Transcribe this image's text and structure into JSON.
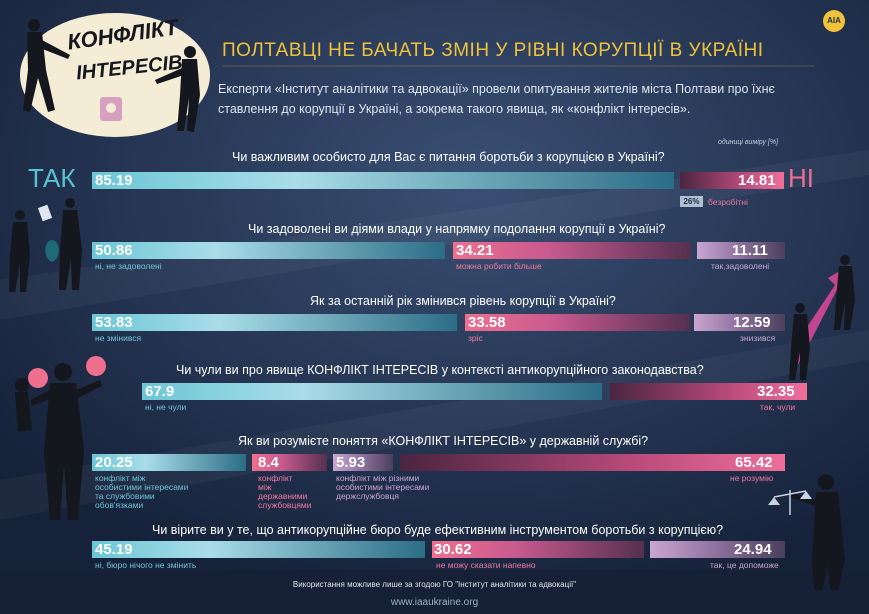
{
  "header": {
    "logo_line1": "КОНФЛІКТ",
    "logo_line2": "ІНТЕРЕСІВ",
    "badge": "АІА",
    "title": "ПОЛТАВЦІ НЕ БАЧАТЬ ЗМІН У РІВНІ КОРУПЦІЇ В УКРАЇНІ",
    "intro": "Експерти «Інститут аналітики та адвокації» провели опитування жителів міста Полтави про їхнє ставлення до корупції в Україні, а зокрема такого явища, як «конфлікт інтересів».",
    "units": "одиниці виміру [%]"
  },
  "colors": {
    "background": "#1d2b44",
    "title": "#f0c23a",
    "blue": "#58c2d6",
    "pink": "#ee6f93",
    "lavender": "#c9a6cf"
  },
  "q1": {
    "question": "Чи важливим особисто для Вас є питання боротьби з корупцією в Україні?",
    "tak": "ТАК",
    "ni": "НІ",
    "yes_value": "85.19",
    "no_value": "14.81",
    "sub_pct": "26%",
    "sub_label": "безробітні"
  },
  "q2": {
    "question": "Чи задоволені ви діями влади у напрямку подолання корупції в Україні?",
    "values": [
      "50.86",
      "34.21",
      "11.11"
    ],
    "labels": [
      "ні, не задоволені",
      "можна робити більше",
      "так,задоволені"
    ]
  },
  "q3": {
    "question": "Як за останній рік змінився рівень корупції в Україні?",
    "values": [
      "53.83",
      "33.58",
      "12.59"
    ],
    "labels": [
      "не змінився",
      "зріс",
      "знизився"
    ]
  },
  "q4": {
    "question": "Чи чули ви про явище КОНФЛІКТ ІНТЕРЕСІВ у контексті антикорупційного законодавства?",
    "values": [
      "67.9",
      "32.35"
    ],
    "labels": [
      "ні, не чули",
      "так, чули"
    ]
  },
  "q5": {
    "question": "Як ви розумієте поняття «КОНФЛІКТ ІНТЕРЕСІВ» у державній службі?",
    "values": [
      "20.25",
      "8.4",
      "5.93",
      "65.42"
    ],
    "labels": [
      [
        "конфлікт між",
        "особистими інтересами",
        "та службовими",
        "обов'язками"
      ],
      [
        "конфлікт",
        "між",
        "державними",
        "службовцями"
      ],
      [
        "конфлікт між різними",
        "особистими інтересами",
        "держслужбовця"
      ],
      [
        "не розумію"
      ]
    ]
  },
  "q6": {
    "question": "Чи вірите ви у те, що антикорупційне бюро буде ефективним інструментом боротьби з корупцією?",
    "values": [
      "45.19",
      "30.62",
      "24.94"
    ],
    "labels": [
      "ні, бюро нічого не змінить",
      "не можу сказати напевно",
      "так, це допоможе"
    ]
  },
  "footer": {
    "note": "Використання можливе лише за згодою ГО \"Інститут аналітики та адвокації\"",
    "url": "www.iaaukraine.org"
  }
}
